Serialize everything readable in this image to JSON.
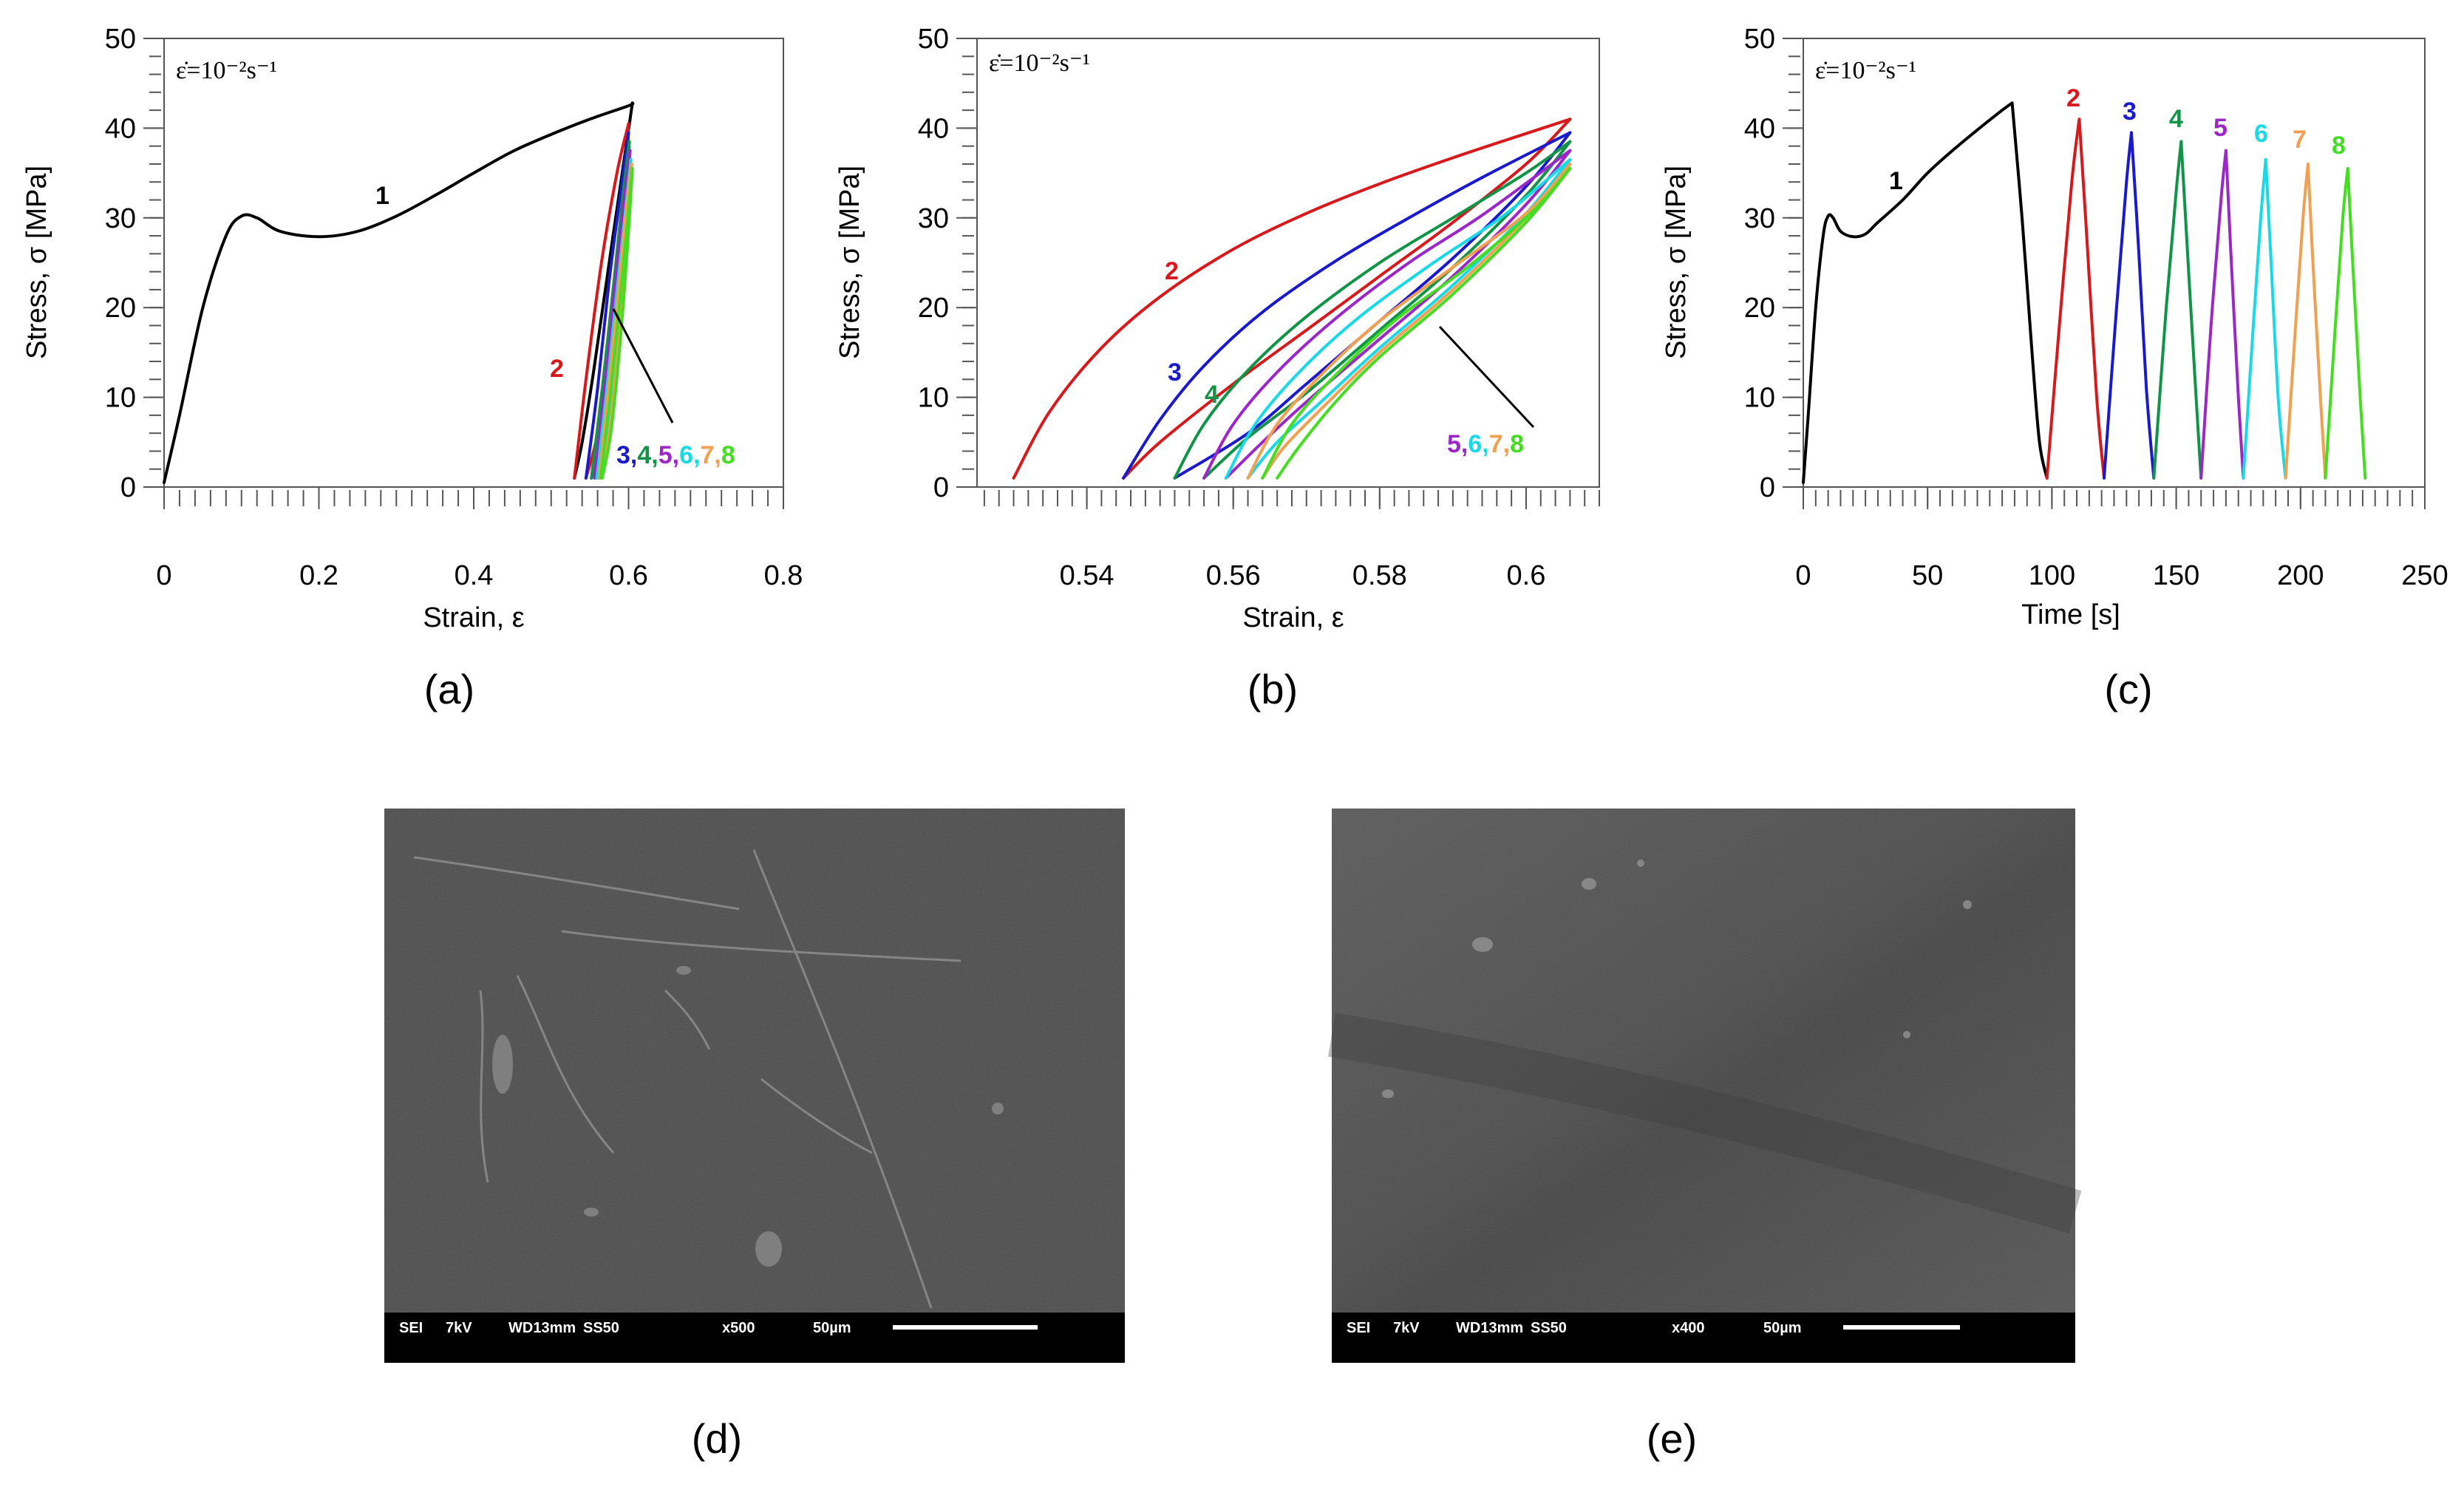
{
  "colors": {
    "c1": "#000000",
    "c2": "#d7191c",
    "c3": "#1a1acc",
    "c4": "#119447",
    "c5": "#9b27c9",
    "c6": "#19d9e6",
    "c7": "#f0a050",
    "c8": "#44dd22"
  },
  "chart_data": [
    {
      "type": "line",
      "panel": "(a)",
      "annotation": "ε̇=10⁻²s⁻¹",
      "xlabel": "Strain, ε",
      "ylabel": "Stress, σ [MPa]",
      "xlim": [
        0,
        0.8
      ],
      "ylim": [
        0,
        50
      ],
      "xticks": [
        "0",
        "0.2",
        "0.4",
        "0.6",
        "0.8"
      ],
      "yticks": [
        "0",
        "10",
        "20",
        "30",
        "40",
        "50"
      ],
      "labels": {
        "l1": "1",
        "l2": "2",
        "group": [
          "3",
          "4",
          "5",
          "6",
          "7",
          "8"
        ]
      },
      "series": [
        {
          "key": "c1",
          "x": [
            0,
            0.02,
            0.05,
            0.08,
            0.1,
            0.12,
            0.15,
            0.2,
            0.25,
            0.3,
            0.35,
            0.4,
            0.45,
            0.5,
            0.55,
            0.6,
            0.605
          ],
          "y": [
            0.5,
            8,
            20,
            28,
            30.2,
            30,
            28.5,
            27.9,
            28.5,
            30.2,
            32.5,
            35,
            37.4,
            39.3,
            41,
            42.5,
            42.8
          ]
        },
        {
          "key": "c1",
          "x": [
            0.605,
            0.58,
            0.555,
            0.54,
            0.53
          ],
          "y": [
            42.8,
            28,
            13,
            5,
            1
          ]
        },
        {
          "key": "c2",
          "x": [
            0.53,
            0.545,
            0.565,
            0.585,
            0.6
          ],
          "y": [
            1,
            12,
            25,
            35,
            40.5
          ]
        },
        {
          "key": "c2",
          "x": [
            0.6,
            0.59,
            0.575,
            0.56,
            0.545
          ],
          "y": [
            40.5,
            28,
            15,
            6,
            1
          ]
        },
        {
          "key": "c3",
          "x": [
            0.545,
            0.56,
            0.575,
            0.59,
            0.6
          ],
          "y": [
            1,
            11,
            23,
            33,
            39.5
          ]
        },
        {
          "key": "c3",
          "x": [
            0.6,
            0.59,
            0.577,
            0.565,
            0.552
          ],
          "y": [
            39.5,
            28,
            15,
            6,
            1
          ]
        },
        {
          "key": "c4",
          "x": [
            0.552,
            0.566,
            0.58,
            0.592,
            0.601
          ],
          "y": [
            1,
            11,
            22,
            32,
            38.5
          ]
        },
        {
          "key": "c4",
          "x": [
            0.601,
            0.592,
            0.58,
            0.568,
            0.556
          ],
          "y": [
            38.5,
            27,
            15,
            6,
            1
          ]
        },
        {
          "key": "c5",
          "x": [
            0.556,
            0.569,
            0.582,
            0.593,
            0.602
          ],
          "y": [
            1,
            11,
            22,
            31,
            37.5
          ]
        },
        {
          "key": "c5",
          "x": [
            0.602,
            0.594,
            0.582,
            0.571,
            0.559
          ],
          "y": [
            37.5,
            27,
            15,
            6,
            1
          ]
        },
        {
          "key": "c6",
          "x": [
            0.559,
            0.572,
            0.584,
            0.595,
            0.603
          ],
          "y": [
            1,
            11,
            21,
            30,
            36.5
          ]
        },
        {
          "key": "c6",
          "x": [
            0.603,
            0.595,
            0.584,
            0.573,
            0.562
          ],
          "y": [
            36.5,
            26,
            15,
            6,
            1
          ]
        },
        {
          "key": "c7",
          "x": [
            0.562,
            0.574,
            0.586,
            0.596,
            0.604
          ],
          "y": [
            1,
            11,
            21,
            30,
            36
          ]
        },
        {
          "key": "c7",
          "x": [
            0.604,
            0.597,
            0.586,
            0.575,
            0.564
          ],
          "y": [
            36,
            26,
            15,
            6,
            1
          ]
        },
        {
          "key": "c8",
          "x": [
            0.564,
            0.576,
            0.588,
            0.598,
            0.605
          ],
          "y": [
            1,
            10,
            20,
            29,
            35.5
          ]
        },
        {
          "key": "c8",
          "x": [
            0.605,
            0.598,
            0.588,
            0.577,
            0.566
          ],
          "y": [
            35.5,
            26,
            15,
            6,
            1
          ]
        }
      ]
    },
    {
      "type": "line",
      "panel": "(b)",
      "annotation": "ε̇=10⁻²s⁻¹",
      "xlabel": "Strain, ε",
      "ylabel": "Stress, σ [MPa]",
      "xlim": [
        0.525,
        0.61
      ],
      "ylim": [
        0,
        50
      ],
      "xticks": [
        "0.54",
        "0.56",
        "0.58",
        "0.6"
      ],
      "yticks": [
        "0",
        "10",
        "20",
        "30",
        "40",
        "50"
      ],
      "labels": {
        "l2": "2",
        "l3": "3",
        "l4": "4",
        "group": [
          "5",
          "6",
          "7",
          "8"
        ]
      },
      "series": [
        {
          "key": "c2",
          "x": [
            0.53,
            0.535,
            0.542,
            0.55,
            0.56,
            0.57,
            0.58,
            0.59,
            0.6,
            0.606
          ],
          "y": [
            1,
            8.5,
            15.5,
            21.2,
            26.5,
            30.5,
            33.8,
            36.7,
            39.4,
            41
          ]
        },
        {
          "key": "c2",
          "x": [
            0.606,
            0.6,
            0.59,
            0.58,
            0.57,
            0.56,
            0.55,
            0.545
          ],
          "y": [
            41,
            36,
            29.5,
            23.5,
            17.5,
            11.5,
            5,
            1
          ]
        },
        {
          "key": "c3",
          "x": [
            0.545,
            0.55,
            0.556,
            0.564,
            0.574,
            0.584,
            0.594,
            0.606
          ],
          "y": [
            1,
            7.5,
            13.5,
            19.5,
            25.2,
            30,
            34.5,
            39.5
          ]
        },
        {
          "key": "c3",
          "x": [
            0.606,
            0.6,
            0.59,
            0.58,
            0.57,
            0.562,
            0.552
          ],
          "y": [
            39.5,
            33.5,
            25.5,
            18.5,
            11.5,
            6,
            1
          ]
        },
        {
          "key": "c4",
          "x": [
            0.552,
            0.556,
            0.562,
            0.57,
            0.58,
            0.59,
            0.6,
            0.606
          ],
          "y": [
            1,
            7,
            13,
            19,
            25,
            30,
            35,
            38.5
          ]
        },
        {
          "key": "c4",
          "x": [
            0.606,
            0.6,
            0.59,
            0.58,
            0.57,
            0.562,
            0.556
          ],
          "y": [
            38.5,
            32.5,
            24.5,
            17.5,
            10.5,
            5.5,
            1
          ]
        },
        {
          "key": "c5",
          "x": [
            0.556,
            0.56,
            0.566,
            0.574,
            0.584,
            0.594,
            0.606
          ],
          "y": [
            1,
            7,
            12.8,
            18.8,
            25,
            30.3,
            37.5
          ]
        },
        {
          "key": "c5",
          "x": [
            0.606,
            0.6,
            0.59,
            0.58,
            0.57,
            0.564,
            0.559
          ],
          "y": [
            37.5,
            31.5,
            23.5,
            16.5,
            9.5,
            5,
            1
          ]
        },
        {
          "key": "c6",
          "x": [
            0.559,
            0.563,
            0.569,
            0.577,
            0.587,
            0.597,
            0.606
          ],
          "y": [
            1,
            7,
            12.8,
            18.8,
            24.8,
            30.3,
            36.5
          ]
        },
        {
          "key": "c6",
          "x": [
            0.606,
            0.6,
            0.59,
            0.58,
            0.572,
            0.566,
            0.562
          ],
          "y": [
            36.5,
            30.5,
            22.5,
            15.5,
            9.5,
            5,
            1
          ]
        },
        {
          "key": "c7",
          "x": [
            0.562,
            0.566,
            0.572,
            0.58,
            0.59,
            0.6,
            0.606
          ],
          "y": [
            1,
            7,
            12.5,
            18.5,
            24.5,
            30.5,
            36
          ]
        },
        {
          "key": "c7",
          "x": [
            0.606,
            0.6,
            0.59,
            0.58,
            0.573,
            0.567,
            0.564
          ],
          "y": [
            36,
            30,
            22,
            15,
            9.5,
            4.5,
            1
          ]
        },
        {
          "key": "c8",
          "x": [
            0.564,
            0.568,
            0.574,
            0.582,
            0.592,
            0.601,
            0.606
          ],
          "y": [
            1,
            7,
            12.5,
            18.5,
            24.5,
            30.8,
            35.5
          ]
        },
        {
          "key": "c8",
          "x": [
            0.606,
            0.6,
            0.59,
            0.58,
            0.574,
            0.569,
            0.566
          ],
          "y": [
            35.5,
            29.5,
            21.5,
            14.5,
            9.5,
            4.5,
            1
          ]
        }
      ]
    },
    {
      "type": "line",
      "panel": "(c)",
      "annotation": "ε̇=10⁻²s⁻¹",
      "xlabel": "Time [s]",
      "ylabel": "Stress, σ [MPa]",
      "xlim": [
        0,
        250
      ],
      "ylim": [
        0,
        50
      ],
      "xticks": [
        "0",
        "50",
        "100",
        "150",
        "200",
        "250"
      ],
      "yticks": [
        "0",
        "10",
        "20",
        "30",
        "40",
        "50"
      ],
      "labels": [
        "1",
        "2",
        "3",
        "4",
        "5",
        "6",
        "7",
        "8"
      ],
      "series": [
        {
          "key": "c1",
          "x": [
            0,
            2,
            5,
            8,
            10,
            12,
            15,
            20,
            25,
            30,
            40,
            50,
            60,
            70,
            80,
            84
          ],
          "y": [
            0.5,
            8,
            20,
            28,
            30.2,
            30,
            28.5,
            27.9,
            28.2,
            29.5,
            32,
            35,
            37.5,
            39.8,
            42,
            42.8
          ]
        },
        {
          "key": "c1",
          "x": [
            84,
            88,
            92,
            95,
            98
          ],
          "y": [
            42.8,
            30,
            15,
            5,
            1
          ]
        },
        {
          "key": "c2",
          "x": [
            98,
            103,
            108,
            111
          ],
          "y": [
            1,
            18,
            34,
            41
          ]
        },
        {
          "key": "c2",
          "x": [
            111,
            114,
            118,
            121
          ],
          "y": [
            41,
            28,
            10,
            1
          ]
        },
        {
          "key": "c3",
          "x": [
            121,
            126,
            130,
            132
          ],
          "y": [
            1,
            20,
            34,
            39.5
          ]
        },
        {
          "key": "c3",
          "x": [
            132,
            135,
            138,
            141
          ],
          "y": [
            39.5,
            26,
            11,
            1
          ]
        },
        {
          "key": "c4",
          "x": [
            141,
            146,
            150,
            152
          ],
          "y": [
            1,
            20,
            33,
            38.5
          ]
        },
        {
          "key": "c4",
          "x": [
            152,
            155,
            158,
            160
          ],
          "y": [
            38.5,
            24,
            10,
            1
          ]
        },
        {
          "key": "c5",
          "x": [
            160,
            164,
            168,
            170
          ],
          "y": [
            1,
            18,
            32,
            37.5
          ]
        },
        {
          "key": "c5",
          "x": [
            170,
            172,
            175,
            177
          ],
          "y": [
            37.5,
            26,
            10,
            1
          ]
        },
        {
          "key": "c6",
          "x": [
            177,
            181,
            184,
            186
          ],
          "y": [
            1,
            18,
            30,
            36.5
          ]
        },
        {
          "key": "c6",
          "x": [
            186,
            188,
            191,
            194
          ],
          "y": [
            36.5,
            26,
            10,
            1
          ]
        },
        {
          "key": "c7",
          "x": [
            194,
            198,
            201,
            203
          ],
          "y": [
            1,
            18,
            30,
            36
          ]
        },
        {
          "key": "c7",
          "x": [
            203,
            205,
            208,
            210
          ],
          "y": [
            36,
            25,
            10,
            1
          ]
        },
        {
          "key": "c8",
          "x": [
            210,
            214,
            217,
            219
          ],
          "y": [
            1,
            18,
            30,
            35.5
          ]
        },
        {
          "key": "c8",
          "x": [
            219,
            221,
            224,
            226
          ],
          "y": [
            35.5,
            25,
            10,
            1
          ]
        }
      ]
    }
  ],
  "captions": {
    "a": "(a)",
    "b": "(b)",
    "c": "(c)",
    "d": "(d)",
    "e": "(e)"
  },
  "micrographs": [
    {
      "panel": "(d)",
      "bar": {
        "mode": "SEI",
        "kv": "7kV",
        "wd": "WD13mm",
        "ss": "SS50",
        "mag": "x500",
        "scale": "50µm"
      }
    },
    {
      "panel": "(e)",
      "bar": {
        "mode": "SEI",
        "kv": "7kV",
        "wd": "WD13mm",
        "ss": "SS50",
        "mag": "x400",
        "scale": "50µm"
      }
    }
  ]
}
